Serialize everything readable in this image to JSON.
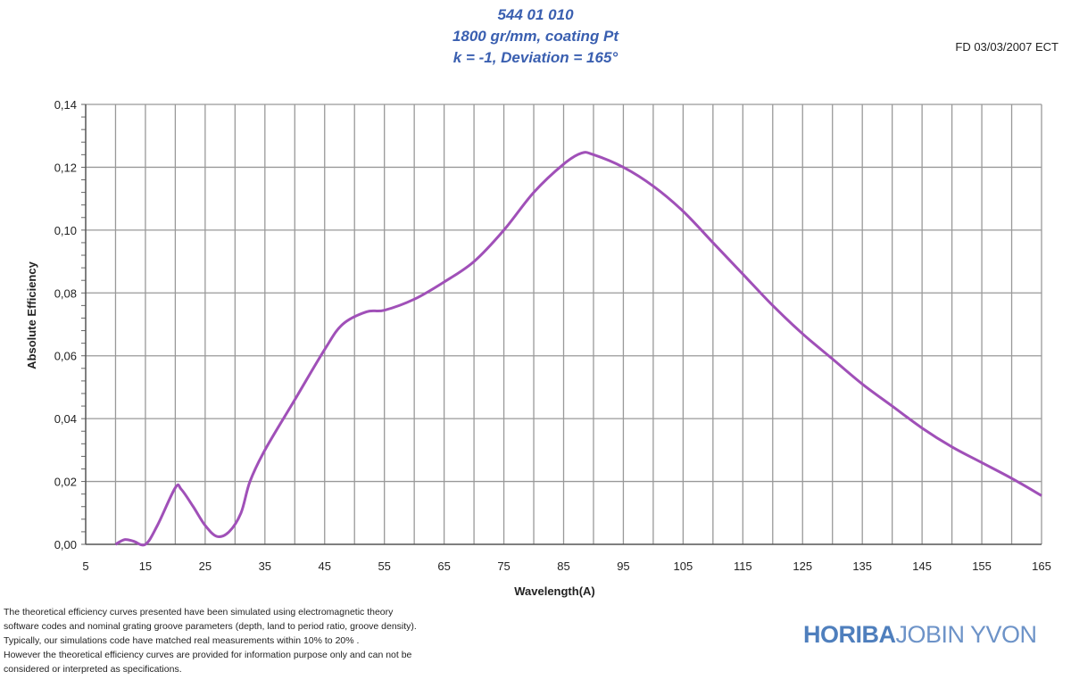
{
  "header": {
    "title_lines": [
      "544 01 010",
      "1800 gr/mm, coating Pt",
      "k = -1, Deviation = 165°"
    ],
    "stamp": "FD 03/03/2007 ECT"
  },
  "footer": {
    "note_lines": [
      "The theoretical efficiency curves presented have been simulated using electromagnetic theory",
      "software codes and nominal grating groove parameters (depth, land to period ratio, groove density).",
      "Typically,  our simulations code have matched real measurements within 10% to  20% .",
      "However the theoretical efficiency curves are provided for information purpose only and can not be",
      "considered or interpreted as specifications."
    ],
    "logo_bold": "HORIBA",
    "logo_light": "JOBIN YVON"
  },
  "colors": {
    "curve": "#a050b8",
    "title": "#3a5fb0",
    "grid": "#999999"
  },
  "chart_data": {
    "type": "line",
    "title": "544 01 010 — 1800 gr/mm, coating Pt — k = -1, Deviation = 165°",
    "xlabel": "Wavelength(A)",
    "ylabel": "Absolute Efficiency",
    "xlim": [
      5,
      165
    ],
    "ylim": [
      0,
      0.14
    ],
    "xticks": [
      "5",
      "15",
      "25",
      "35",
      "45",
      "55",
      "65",
      "75",
      "85",
      "95",
      "105",
      "115",
      "125",
      "135",
      "145",
      "155",
      "165"
    ],
    "yticks": [
      "0,00",
      "0,02",
      "0,04",
      "0,06",
      "0,08",
      "0,10",
      "0,12",
      "0,14"
    ],
    "grid": true,
    "legend": "none",
    "series": [
      {
        "name": "Absolute Efficiency",
        "x": [
          10,
          11.5,
          13,
          15,
          17,
          20,
          21,
          23,
          25,
          27,
          29,
          31,
          32.5,
          35,
          40,
          45,
          48,
          52,
          55,
          60,
          65,
          70,
          75,
          80,
          85,
          88,
          90,
          95,
          100,
          105,
          110,
          115,
          120,
          125,
          130,
          135,
          140,
          145,
          150,
          155,
          160,
          165
        ],
        "y": [
          0,
          0.0015,
          0.001,
          0,
          0.006,
          0.018,
          0.0175,
          0.012,
          0.006,
          0.0025,
          0.004,
          0.01,
          0.02,
          0.03,
          0.046,
          0.062,
          0.07,
          0.074,
          0.0745,
          0.078,
          0.0835,
          0.09,
          0.1,
          0.112,
          0.121,
          0.1245,
          0.124,
          0.12,
          0.114,
          0.106,
          0.096,
          0.086,
          0.076,
          0.067,
          0.059,
          0.051,
          0.044,
          0.037,
          0.031,
          0.026,
          0.021,
          0.0155
        ]
      }
    ]
  }
}
